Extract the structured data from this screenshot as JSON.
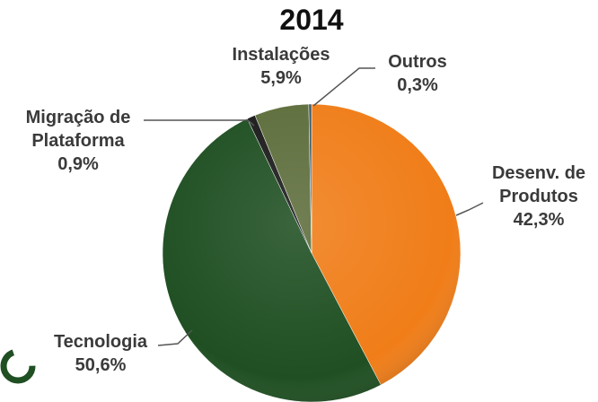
{
  "chart_data": {
    "type": "pie",
    "title": "2014",
    "categories": [
      "Desenv. de Produtos",
      "Tecnologia",
      "Migração de Plataforma",
      "Instalações",
      "Outros"
    ],
    "values": [
      42.3,
      50.6,
      0.9,
      5.9,
      0.3
    ],
    "value_labels": [
      "42,3%",
      "50,6%",
      "0,9%",
      "5,9%",
      "0,3%"
    ],
    "colors": [
      "#f07d18",
      "#1f4f22",
      "#1a1a1a",
      "#5d6d3b",
      "#3b5463"
    ]
  }
}
